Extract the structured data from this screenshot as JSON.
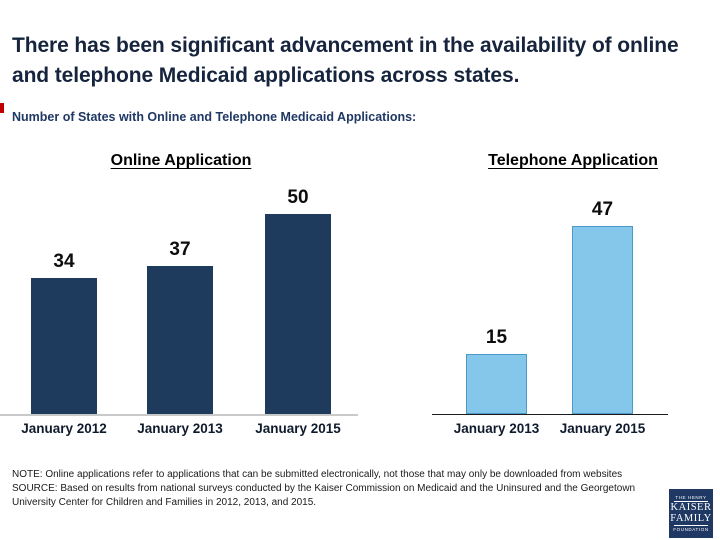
{
  "slide": {
    "title": "There has been significant advancement in the availability of online and telephone Medicaid applications across states.",
    "title_color": "#16243D",
    "subtitle": "Number of States with Online and Telephone Medicaid Applications:",
    "subtitle_color": "#1F3864",
    "accent_square_color": "#C00000",
    "footnote": {
      "note": "NOTE: Online applications  refer to applications that can be submitted electronically, not those that may only be downloaded from websites",
      "source": "SOURCE: Based on results from national surveys conducted by the Kaiser Commission on Medicaid and the Uninsured and the Georgetown University Center for Children and Families in 2012, 2013, and 2015."
    },
    "logo": {
      "top": "THE HENRY",
      "name_line1": "KAISER",
      "name_line2": "FAMILY",
      "bottom": "FOUNDATION",
      "background_color": "#1F3864"
    }
  },
  "chart_data": [
    {
      "type": "bar",
      "title": "Online Application",
      "categories": [
        "January 2012",
        "January 2013",
        "January 2015"
      ],
      "values": [
        34,
        37,
        50
      ],
      "bar_color": "#1E3A5C",
      "bar_border": "none",
      "baseline_color": "#C9C9C9",
      "value_labels": "above bars",
      "ylabel": "",
      "xlabel": "",
      "ylim": [
        0,
        55
      ],
      "grid": "off",
      "y_axis_shown": false
    },
    {
      "type": "bar",
      "title": "Telephone Application",
      "categories": [
        "January 2013",
        "January 2015"
      ],
      "values": [
        15,
        47
      ],
      "bar_color": "#85C6EB",
      "bar_border": "#4D9AC6",
      "baseline_color": "#1c1c1c",
      "value_labels": "above bars",
      "ylabel": "",
      "xlabel": "",
      "ylim": [
        0,
        55
      ],
      "grid": "off",
      "y_axis_shown": false
    }
  ]
}
